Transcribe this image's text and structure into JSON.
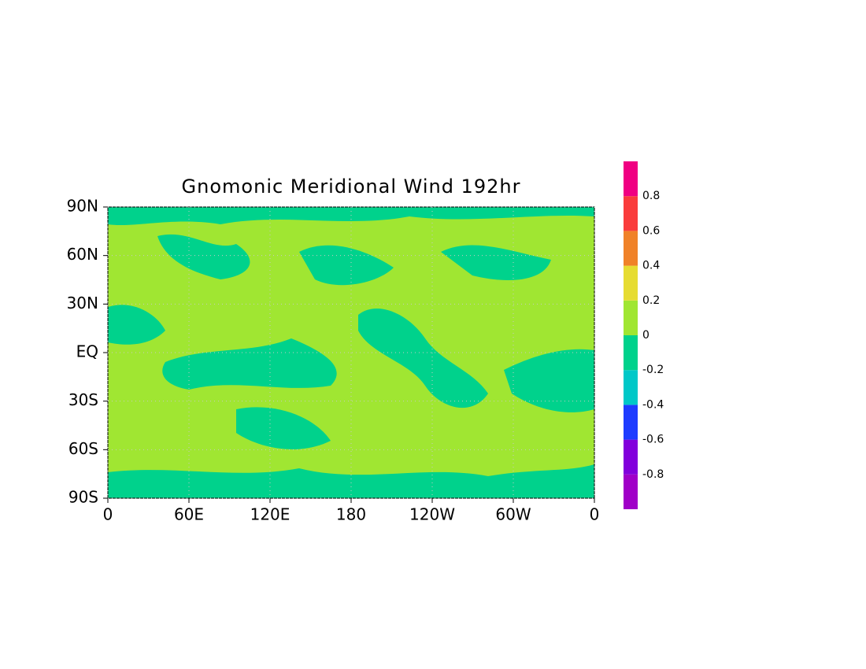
{
  "chart_data": {
    "type": "contour-map",
    "title": "Gnomonic Meridional Wind 192hr",
    "xlim": [
      0,
      360
    ],
    "xticks": [
      0,
      {
        "value": 60,
        "label": "60E"
      },
      {
        "value": 120,
        "label": "120E"
      },
      180,
      {
        "value": 240,
        "label": "120W"
      },
      {
        "value": 300,
        "label": "60W"
      },
      {
        "value": 360,
        "label": "0"
      }
    ],
    "ylim": [
      -90,
      90
    ],
    "yticks": [
      {
        "value": -90,
        "label": "90S"
      },
      {
        "value": -60,
        "label": "60S"
      },
      {
        "value": -30,
        "label": "30S"
      },
      {
        "value": 0,
        "label": "EQ"
      },
      {
        "value": 30,
        "label": "30N"
      },
      {
        "value": 60,
        "label": "60N"
      },
      {
        "value": 90,
        "label": "90N"
      }
    ],
    "colorbar": {
      "levels": [
        -0.8,
        -0.6,
        -0.4,
        -0.2,
        0,
        0.2,
        0.4,
        0.6,
        0.8
      ],
      "colors": [
        "#a000c8",
        "#8200dc",
        "#1e3cff",
        "#00c8c8",
        "#00d28c",
        "#a0e632",
        "#e6dc32",
        "#f08228",
        "#fa3c3c",
        "#f00082"
      ]
    }
  }
}
